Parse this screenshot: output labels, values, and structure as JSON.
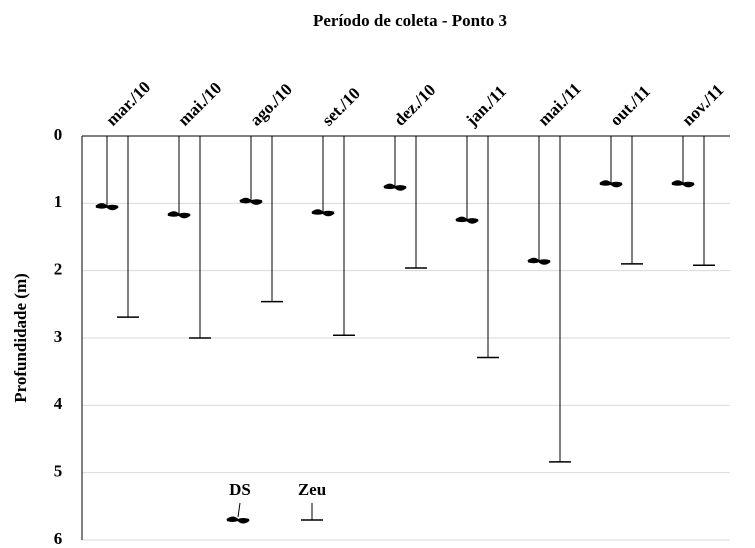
{
  "chart_data": {
    "type": "depth-profile",
    "title": "Período de coleta - Ponto 3",
    "y_label": "Profundidade (m)",
    "categories": [
      "mar./10",
      "mai./10",
      "ago./10",
      "set./10",
      "dez./10",
      "jan./11",
      "mai./11",
      "out./11",
      "nov./11"
    ],
    "series": [
      {
        "name": "DS",
        "color": "#000000",
        "values": [
          1.05,
          1.17,
          0.97,
          1.14,
          0.76,
          1.25,
          1.86,
          0.71,
          0.71
        ]
      },
      {
        "name": "Zeu",
        "color": "#000000",
        "values": [
          2.69,
          3.0,
          2.46,
          2.96,
          1.96,
          3.29,
          4.84,
          1.9,
          1.92
        ]
      }
    ],
    "ylim": [
      0,
      6
    ],
    "yticks": [
      0,
      1,
      2,
      3,
      4,
      5,
      6
    ],
    "y_inverted": true,
    "grid": true,
    "legend": "bottom-left"
  }
}
